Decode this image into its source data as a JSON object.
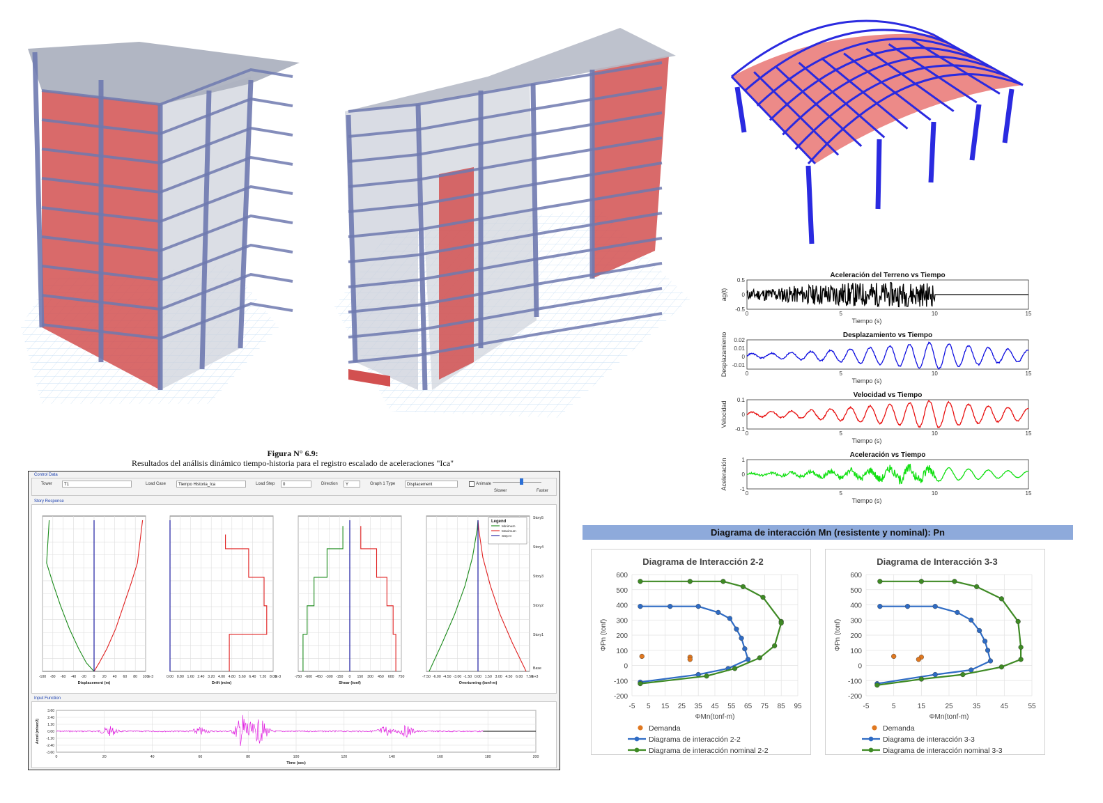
{
  "figure_caption": {
    "title": "Figura N° 6.9:",
    "subtitle": "Resultados del análisis dinámico tiempo-historia para el registro escalado de aceleraciones \"Ica\""
  },
  "etabs": {
    "control_data_label": "Control Data",
    "tower_label": "Tower",
    "tower_value": "T1",
    "load_case_label": "Load Case",
    "load_case_value": "Tiempo Historia_Ica",
    "load_step_label": "Load Step",
    "load_step_value": "0",
    "direction_label": "Direction",
    "direction_value": "Y",
    "graph_type_label": "Graph 1 Type",
    "graph_type_value": "Displacement",
    "animate_label": "Animate",
    "slower_label": "Slower",
    "faster_label": "Faster",
    "story_response_label": "Story Response",
    "input_function_label": "Input Function",
    "legend_title": "Legend",
    "legend_items": [
      "Minimum",
      "Maximum",
      "Step 0"
    ],
    "story_labels": [
      "Story5",
      "Story4",
      "Story3",
      "Story2",
      "Story1",
      "Base"
    ],
    "colors": {
      "min": "#1a8a1a",
      "max": "#e02020",
      "step": "#1a1aa0",
      "input": "#e020e0"
    }
  },
  "chart_data": [
    {
      "type": "line",
      "title": "",
      "xlabel": "Displacement (m)",
      "x_ticks": [
        "-100",
        "-80",
        "-60",
        "-40",
        "-20",
        "0",
        "20",
        "40",
        "60",
        "80",
        "100"
      ],
      "xlim": [
        -100,
        100
      ],
      "x_multiplier": "E-3",
      "y_categories": [
        "Base",
        "Story1",
        "Story2",
        "Story3",
        "Story4",
        "Story5"
      ],
      "series": [
        {
          "name": "Minimum",
          "points": [
            [
              0,
              0
            ],
            [
              -15,
              0.3
            ],
            [
              -30,
              0.8
            ],
            [
              -48,
              1.5
            ],
            [
              -65,
              2.3
            ],
            [
              -80,
              3.1
            ],
            [
              -92,
              3.8
            ],
            [
              -87,
              5.3
            ]
          ]
        },
        {
          "name": "Maximum",
          "points": [
            [
              0,
              0
            ],
            [
              10,
              0.3
            ],
            [
              25,
              0.8
            ],
            [
              42,
              1.5
            ],
            [
              57,
              2.3
            ],
            [
              72,
              3.1
            ],
            [
              84,
              3.8
            ],
            [
              94,
              5.3
            ]
          ]
        },
        {
          "name": "Step 0",
          "points": [
            [
              0,
              0
            ],
            [
              0,
              5.3
            ]
          ]
        }
      ]
    },
    {
      "type": "line",
      "title": "",
      "xlabel": "Drift (m/m)",
      "x_ticks": [
        "0.00",
        "0.80",
        "1.60",
        "2.40",
        "3.20",
        "4.00",
        "4.80",
        "5.60",
        "6.40",
        "7.20",
        "8.00"
      ],
      "xlim": [
        0,
        8
      ],
      "x_multiplier": "E-3",
      "series": [
        {
          "name": "Maximum",
          "points": [
            [
              4.6,
              0
            ],
            [
              4.6,
              1.3
            ],
            [
              7.5,
              1.3
            ],
            [
              7.5,
              2.3
            ],
            [
              7.3,
              2.3
            ],
            [
              7.3,
              3.3
            ],
            [
              6.1,
              3.3
            ],
            [
              6.1,
              4.3
            ],
            [
              4.3,
              4.3
            ],
            [
              4.3,
              4.8
            ]
          ]
        },
        {
          "name": "Step 0",
          "points": [
            [
              0,
              0
            ],
            [
              0,
              5.3
            ]
          ]
        }
      ]
    },
    {
      "type": "line",
      "title": "",
      "xlabel": "Shear (tonf)",
      "x_ticks": [
        "-750",
        "-600",
        "-450",
        "-300",
        "-150",
        "0",
        "150",
        "300",
        "450",
        "600",
        "750"
      ],
      "xlim": [
        -750,
        750
      ],
      "series": [
        {
          "name": "Minimum",
          "points": [
            [
              -680,
              0
            ],
            [
              -680,
              1.3
            ],
            [
              -620,
              1.3
            ],
            [
              -620,
              2.3
            ],
            [
              -520,
              2.3
            ],
            [
              -520,
              3.3
            ],
            [
              -330,
              3.3
            ],
            [
              -330,
              4.3
            ],
            [
              -100,
              4.3
            ],
            [
              -100,
              5.1
            ]
          ]
        },
        {
          "name": "Maximum",
          "points": [
            [
              670,
              0
            ],
            [
              670,
              1.3
            ],
            [
              630,
              1.3
            ],
            [
              630,
              2.3
            ],
            [
              540,
              2.3
            ],
            [
              540,
              3.3
            ],
            [
              390,
              3.3
            ],
            [
              390,
              4.3
            ],
            [
              160,
              4.3
            ],
            [
              160,
              5.1
            ]
          ]
        },
        {
          "name": "Step 0",
          "points": [
            [
              0,
              0
            ],
            [
              0,
              5.3
            ]
          ]
        }
      ]
    },
    {
      "type": "line",
      "title": "",
      "xlabel": "Overturning (tonf-m)",
      "x_ticks": [
        "-7.50",
        "-6.00",
        "-4.50",
        "-3.00",
        "-1.50",
        "0.00",
        "1.50",
        "3.00",
        "4.50",
        "6.00",
        "7.50"
      ],
      "xlim": [
        -7.5,
        7.5
      ],
      "x_multiplier": "E+3",
      "series": [
        {
          "name": "Minimum",
          "points": [
            [
              -7.1,
              0
            ],
            [
              -5.2,
              1.0
            ],
            [
              -3.4,
              2.0
            ],
            [
              -1.9,
              3.0
            ],
            [
              -0.8,
              4.0
            ],
            [
              -0.1,
              5.0
            ],
            [
              0,
              5.3
            ]
          ]
        },
        {
          "name": "Maximum",
          "points": [
            [
              7.0,
              0
            ],
            [
              5.0,
              1.0
            ],
            [
              3.2,
              2.0
            ],
            [
              1.8,
              3.0
            ],
            [
              0.7,
              4.0
            ],
            [
              0.1,
              5.0
            ],
            [
              0,
              5.3
            ]
          ]
        },
        {
          "name": "Step 0",
          "points": [
            [
              0,
              0
            ],
            [
              0,
              5.3
            ]
          ]
        }
      ]
    },
    {
      "type": "line",
      "title": "",
      "xlabel": "Time (sec)",
      "ylabel": "Accel (m/sec2)",
      "x_ticks": [
        "0",
        "20",
        "40",
        "60",
        "80",
        "100",
        "120",
        "140",
        "160",
        "180",
        "200"
      ],
      "xlim": [
        0,
        200
      ],
      "y_ticks": [
        "3.60",
        "2.40",
        "1.20",
        "0.00",
        "-1.20",
        "-2.40",
        "-3.60"
      ],
      "ylim": [
        -3.6,
        3.6
      ],
      "series": [
        {
          "name": "Input",
          "x_end": 178,
          "bursts": [
            [
              22,
              0.8
            ],
            [
              60,
              0.6
            ],
            [
              78,
              3.0
            ],
            [
              85,
              2.0
            ],
            [
              137,
              0.8
            ],
            [
              146,
              0.9
            ]
          ]
        }
      ]
    },
    {
      "type": "line",
      "title": "Aceleración del Terreno vs Tiempo",
      "xlabel": "Tiempo (s)",
      "ylabel": "ag(t)",
      "xlim": [
        0,
        15
      ],
      "ylim": [
        -0.5,
        0.5
      ],
      "x_ticks": [
        "0",
        "5",
        "10",
        "15"
      ],
      "y_ticks": [
        "0.5",
        "0",
        "-0.5"
      ],
      "series": [
        {
          "name": "",
          "color": "#000000",
          "duration": 10,
          "amp": 0.42,
          "kind": "noise"
        }
      ]
    },
    {
      "type": "line",
      "title": "Desplazamiento vs Tiempo",
      "xlabel": "Tiempo (s)",
      "ylabel": "Desplazamiento",
      "xlim": [
        0,
        15
      ],
      "ylim": [
        -0.015,
        0.02
      ],
      "x_ticks": [
        "0",
        "5",
        "10",
        "15"
      ],
      "y_ticks": [
        "0.02",
        "0.01",
        "0",
        "-0.01"
      ],
      "series": [
        {
          "name": "",
          "color": "#1010e0",
          "amp": 0.018,
          "kind": "smooth"
        }
      ]
    },
    {
      "type": "line",
      "title": "Velocidad vs Tiempo",
      "xlabel": "Tiempo (s)",
      "ylabel": "Velocidad",
      "xlim": [
        0,
        15
      ],
      "ylim": [
        -0.1,
        0.1
      ],
      "x_ticks": [
        "0",
        "5",
        "10",
        "15"
      ],
      "y_ticks": [
        "0.1",
        "0",
        "-0.1"
      ],
      "series": [
        {
          "name": "",
          "color": "#e81010",
          "amp": 0.095,
          "kind": "smooth"
        }
      ]
    },
    {
      "type": "line",
      "title": "Aceleración vs Tiempo",
      "xlabel": "Tiempo (s)",
      "ylabel": "Aceleración",
      "xlim": [
        0,
        15
      ],
      "ylim": [
        -1,
        1
      ],
      "x_ticks": [
        "0",
        "5",
        "10",
        "15"
      ],
      "y_ticks": [
        "1",
        "0",
        "-1"
      ],
      "series": [
        {
          "name": "",
          "color": "#10e010",
          "amp": 0.9,
          "kind": "mixed"
        }
      ]
    },
    {
      "type": "scatter",
      "title": "Diagrama de Interacción 2-2",
      "xlabel": "ΦMn(tonf-m)",
      "ylabel": "ΦPn (tonf)",
      "xlim": [
        -5,
        95
      ],
      "ylim": [
        -200,
        600
      ],
      "x_ticks": [
        "-5",
        "5",
        "15",
        "25",
        "35",
        "45",
        "55",
        "65",
        "75",
        "85",
        "95"
      ],
      "y_ticks": [
        "600",
        "500",
        "400",
        "300",
        "200",
        "100",
        "0",
        "-100",
        "-200"
      ],
      "series": [
        {
          "name": "Demanda",
          "color": "#e07820",
          "points": [
            [
              1,
              60
            ],
            [
              30,
              55
            ],
            [
              30,
              40
            ]
          ]
        },
        {
          "name": "Diagrama de interacción 2-2",
          "color": "#2e6bc4",
          "points": [
            [
              0,
              390
            ],
            [
              18,
              390
            ],
            [
              35,
              390
            ],
            [
              47,
              350
            ],
            [
              54,
              310
            ],
            [
              58,
              240
            ],
            [
              61,
              180
            ],
            [
              63,
              110
            ],
            [
              65,
              40
            ],
            [
              53,
              -20
            ],
            [
              35,
              -60
            ],
            [
              0,
              -110
            ]
          ]
        },
        {
          "name": "Diagrama de interacción nominal 2-2",
          "color": "#3e8a24",
          "points": [
            [
              0,
              555
            ],
            [
              30,
              555
            ],
            [
              50,
              555
            ],
            [
              62,
              520
            ],
            [
              74,
              450
            ],
            [
              85,
              290
            ],
            [
              85,
              280
            ],
            [
              81,
              130
            ],
            [
              72,
              50
            ],
            [
              57,
              -20
            ],
            [
              40,
              -70
            ],
            [
              0,
              -120
            ]
          ]
        }
      ]
    },
    {
      "type": "scatter",
      "title": "Diagrama de Interacción 3-3",
      "xlabel": "ΦMn(tonf-m)",
      "ylabel": "ΦPn (tonf)",
      "xlim": [
        -5,
        55
      ],
      "ylim": [
        -200,
        600
      ],
      "x_ticks": [
        "-5",
        "5",
        "15",
        "25",
        "35",
        "45",
        "55"
      ],
      "y_ticks": [
        "600",
        "500",
        "400",
        "300",
        "200",
        "100",
        "0",
        "-100",
        "-200"
      ],
      "series": [
        {
          "name": "Demanda",
          "color": "#e07820",
          "points": [
            [
              5,
              60
            ],
            [
              15,
              55
            ],
            [
              14,
              40
            ]
          ]
        },
        {
          "name": "Diagrama de interacción 3-3",
          "color": "#2e6bc4",
          "points": [
            [
              0,
              390
            ],
            [
              10,
              390
            ],
            [
              20,
              390
            ],
            [
              28,
              350
            ],
            [
              33,
              300
            ],
            [
              36,
              230
            ],
            [
              38,
              160
            ],
            [
              39,
              100
            ],
            [
              40,
              30
            ],
            [
              33,
              -30
            ],
            [
              20,
              -60
            ],
            [
              -1,
              -120
            ]
          ]
        },
        {
          "name": "Diagrama de interacción nominal 3-3",
          "color": "#3e8a24",
          "points": [
            [
              0,
              555
            ],
            [
              15,
              555
            ],
            [
              27,
              555
            ],
            [
              35,
              520
            ],
            [
              44,
              440
            ],
            [
              50,
              290
            ],
            [
              51,
              120
            ],
            [
              51,
              40
            ],
            [
              44,
              -10
            ],
            [
              30,
              -60
            ],
            [
              15,
              -90
            ],
            [
              -1,
              -130
            ]
          ]
        }
      ]
    }
  ],
  "interaction": {
    "banner": "Diagrama de interacción Mn (resistente y nominal): Pn"
  }
}
